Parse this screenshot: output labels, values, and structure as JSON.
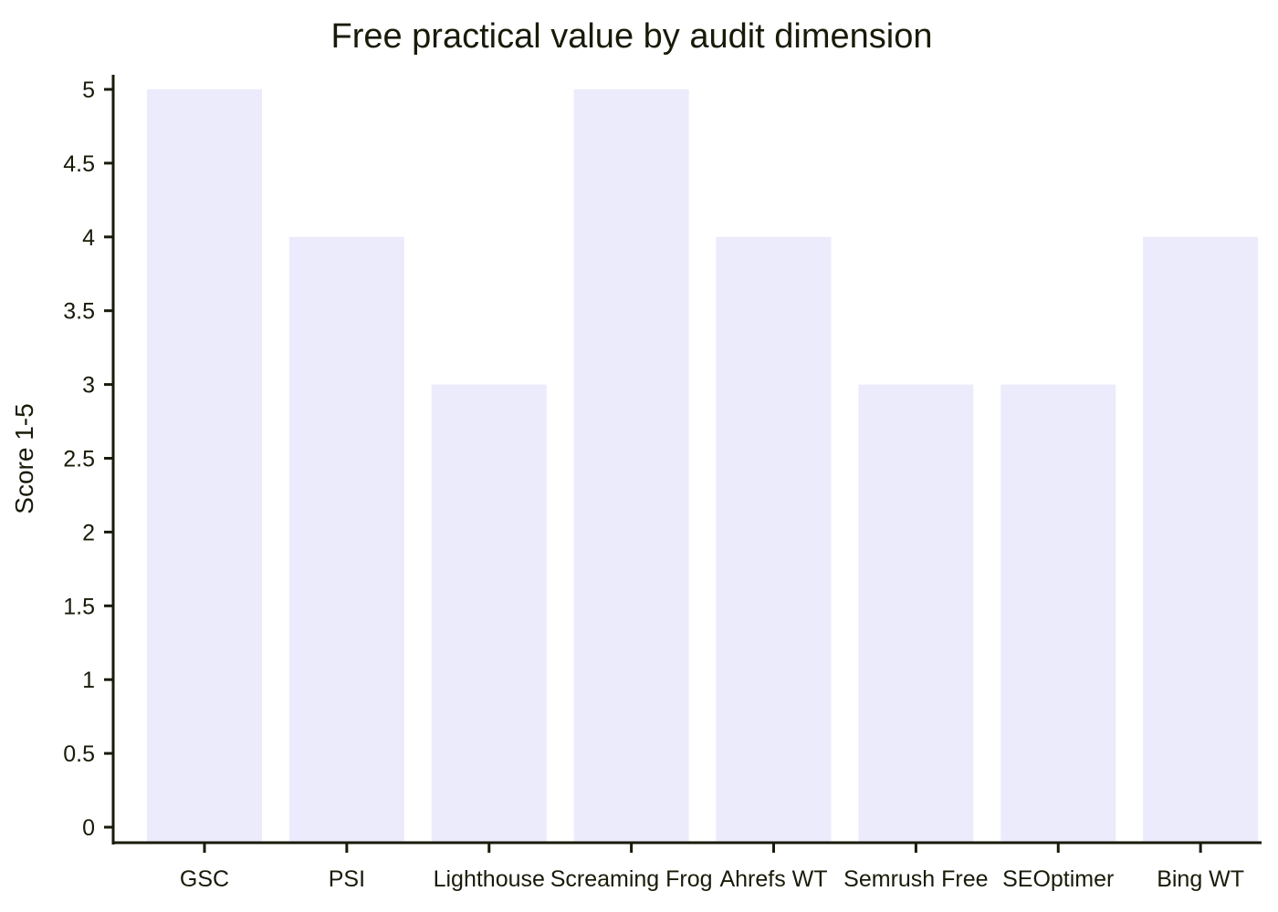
{
  "chart_data": {
    "type": "bar",
    "title": "Free practical value by audit dimension",
    "xlabel": "",
    "ylabel": "Score 1-5",
    "categories": [
      "GSC",
      "PSI",
      "Lighthouse",
      "Screaming Frog",
      "Ahrefs WT",
      "Semrush Free",
      "SEOptimer",
      "Bing WT"
    ],
    "values": [
      5,
      4,
      3,
      5,
      4,
      3,
      3,
      4
    ],
    "ylim": [
      0,
      5
    ],
    "yticks": [
      0,
      0.5,
      1,
      1.5,
      2,
      2.5,
      3,
      3.5,
      4,
      4.5,
      5
    ],
    "grid": false,
    "legend": "none",
    "colors": {
      "bar": "#ebebfc",
      "axis": "#1a1a0a",
      "text": "#1a1a0a",
      "background": "#ffffff"
    }
  }
}
